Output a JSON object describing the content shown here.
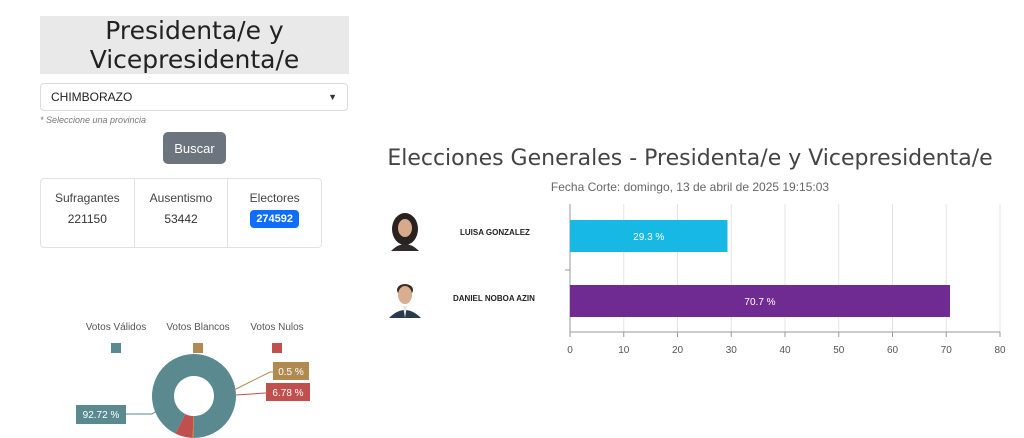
{
  "panel": {
    "title_line1": "Presidenta/e y",
    "title_line2": "Vicepresidenta/e",
    "province": "CHIMBORAZO",
    "hint": "* Seleccione una provincia",
    "search_label": "Buscar"
  },
  "stats": {
    "sufragantes_label": "Sufragantes",
    "sufragantes_value": "221150",
    "ausentismo_label": "Ausentismo",
    "ausentismo_value": "53442",
    "electores_label": "Electores",
    "electores_value": "274592"
  },
  "pie": {
    "legend": [
      "Votos Válidos",
      "Votos Blancos",
      "Votos Nulos"
    ],
    "colors": [
      "#5a8a8f",
      "#b08a50",
      "#c0504d"
    ],
    "labels": [
      "92.72 %",
      "0.5 %",
      "6.78 %"
    ]
  },
  "results": {
    "title": "Elecciones Generales - Presidenta/e y Vicepresidenta/e",
    "subtitle": "Fecha Corte: domingo, 13 de abril de 2025 19:15:03"
  },
  "chart_data": [
    {
      "type": "bar",
      "orientation": "horizontal",
      "title": "Elecciones Generales - Presidenta/e y Vicepresidenta/e",
      "subtitle": "Fecha Corte: domingo, 13 de abril de 2025 19:15:03",
      "categories": [
        "LUISA GONZALEZ",
        "DANIEL NOBOA AZIN"
      ],
      "values": [
        29.3,
        70.7
      ],
      "value_labels": [
        "29.3 %",
        "70.7 %"
      ],
      "colors": [
        "#17b8e3",
        "#6f2b91"
      ],
      "xlim": [
        0,
        80
      ],
      "xticks": [
        0,
        10,
        20,
        30,
        40,
        50,
        60,
        70,
        80
      ],
      "grid": true
    },
    {
      "type": "pie",
      "categories": [
        "Votos Válidos",
        "Votos Blancos",
        "Votos Nulos"
      ],
      "values": [
        92.72,
        0.5,
        6.78
      ],
      "labels": [
        "92.72 %",
        "0.5 %",
        "6.78 %"
      ],
      "colors": [
        "#5a8a8f",
        "#b08a50",
        "#c0504d"
      ],
      "legend": "top"
    }
  ]
}
